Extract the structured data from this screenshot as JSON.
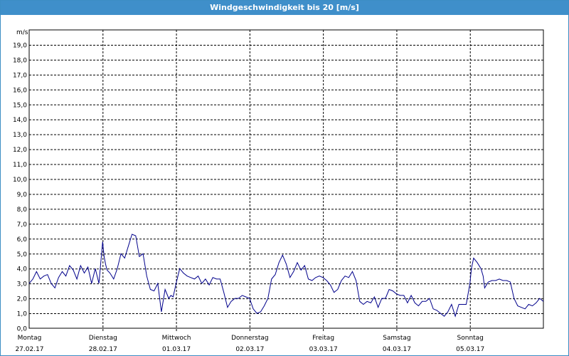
{
  "window": {
    "title": "Windgeschwindigkeit bis 20 [m/s]"
  },
  "colors": {
    "titlebar": "#3f8fca",
    "line": "#00008b",
    "grid": "#000000"
  },
  "chart_data": {
    "type": "line",
    "title": "Windgeschwindigkeit bis 20 [m/s]",
    "ylabel": "m/s",
    "ylim": [
      0,
      20
    ],
    "yticks": [
      "0,0",
      "1,0",
      "2,0",
      "3,0",
      "4,0",
      "5,0",
      "6,0",
      "7,0",
      "8,0",
      "9,0",
      "10,0",
      "11,0",
      "12,0",
      "13,0",
      "14,0",
      "15,0",
      "16,0",
      "17,0",
      "18,0",
      "19,0"
    ],
    "xlim": [
      0,
      7
    ],
    "grid": true,
    "x_categories": [
      {
        "day": "Montag",
        "date": "27.02.17"
      },
      {
        "day": "Dienstag",
        "date": "28.02.17"
      },
      {
        "day": "Mittwoch",
        "date": "01.03.17"
      },
      {
        "day": "Donnerstag",
        "date": "02.03.17"
      },
      {
        "day": "Freitag",
        "date": "03.03.17"
      },
      {
        "day": "Samstag",
        "date": "04.03.17"
      },
      {
        "day": "Sonntag",
        "date": "05.03.17"
      }
    ],
    "series": [
      {
        "x": [
          0,
          0.05,
          0.1,
          0.15,
          0.2,
          0.25,
          0.3,
          0.35,
          0.4,
          0.45,
          0.5,
          0.55,
          0.6,
          0.65,
          0.7,
          0.75,
          0.8,
          0.85,
          0.9,
          0.95,
          1.0,
          1.02,
          1.04,
          1.06,
          1.1,
          1.15,
          1.2,
          1.25,
          1.3,
          1.35,
          1.4,
          1.45,
          1.5,
          1.55,
          1.6,
          1.65,
          1.7,
          1.75,
          1.8,
          1.85,
          1.9,
          1.93,
          1.96,
          2.0,
          2.05,
          2.1,
          2.15,
          2.2,
          2.25,
          2.3,
          2.35,
          2.4,
          2.45,
          2.5,
          2.55,
          2.6,
          2.65,
          2.7,
          2.75,
          2.8,
          2.85,
          2.9,
          2.95,
          3.0,
          3.05,
          3.1,
          3.15,
          3.2,
          3.25,
          3.3,
          3.35,
          3.4,
          3.45,
          3.5,
          3.55,
          3.6,
          3.65,
          3.7,
          3.75,
          3.8,
          3.85,
          3.9,
          3.95,
          4.0,
          4.05,
          4.1,
          4.15,
          4.2,
          4.25,
          4.3,
          4.35,
          4.4,
          4.45,
          4.5,
          4.55,
          4.6,
          4.65,
          4.7,
          4.75,
          4.8,
          4.85,
          4.9,
          4.95,
          5.0,
          5.05,
          5.1,
          5.15,
          5.2,
          5.25,
          5.3,
          5.35,
          5.4,
          5.45,
          5.5,
          5.55,
          5.6,
          5.65,
          5.7,
          5.75,
          5.8,
          5.85,
          5.9,
          5.95,
          6.0,
          6.02,
          6.05,
          6.1,
          6.15,
          6.18,
          6.2,
          6.25,
          6.3,
          6.35,
          6.4,
          6.45,
          6.5,
          6.55,
          6.6,
          6.65,
          6.7,
          6.75,
          6.8,
          6.85,
          6.9,
          6.95,
          7.0
        ],
        "values": [
          3.0,
          3.3,
          3.8,
          3.3,
          3.5,
          3.6,
          3.0,
          2.7,
          3.4,
          3.8,
          3.5,
          4.2,
          3.9,
          3.3,
          4.2,
          3.7,
          4.1,
          3.0,
          4.0,
          3.0,
          5.8,
          4.8,
          4.3,
          3.9,
          3.7,
          3.3,
          4.0,
          5.0,
          4.7,
          5.5,
          6.3,
          6.2,
          4.8,
          5.0,
          3.5,
          2.6,
          2.5,
          3.0,
          1.1,
          2.6,
          2.0,
          2.2,
          2.1,
          3.0,
          4.0,
          3.7,
          3.5,
          3.4,
          3.3,
          3.5,
          3.0,
          3.3,
          2.9,
          3.4,
          3.3,
          3.3,
          2.4,
          1.4,
          1.8,
          2.0,
          2.0,
          2.2,
          2.1,
          2.0,
          1.3,
          1.0,
          1.1,
          1.5,
          2.0,
          3.3,
          3.6,
          4.4,
          4.9,
          4.3,
          3.4,
          3.8,
          4.4,
          3.9,
          4.2,
          3.3,
          3.2,
          3.4,
          3.5,
          3.4,
          3.2,
          2.9,
          2.4,
          2.6,
          3.2,
          3.5,
          3.4,
          3.8,
          3.2,
          1.8,
          1.6,
          1.8,
          1.7,
          2.1,
          1.4,
          2.0,
          2.0,
          2.6,
          2.5,
          2.3,
          2.2,
          2.2,
          1.7,
          2.2,
          1.7,
          1.5,
          1.8,
          1.8,
          2.0,
          1.3,
          1.2,
          1.0,
          0.8,
          1.1,
          1.6,
          0.8,
          1.6,
          1.6,
          1.6,
          3.0,
          4.0,
          4.7,
          4.4,
          4.0,
          3.5,
          2.7,
          3.1,
          3.2,
          3.2,
          3.3,
          3.2,
          3.2,
          3.1,
          2.0,
          1.5,
          1.4,
          1.3,
          1.6,
          1.5,
          1.7,
          2.0,
          1.8
        ]
      }
    ]
  }
}
